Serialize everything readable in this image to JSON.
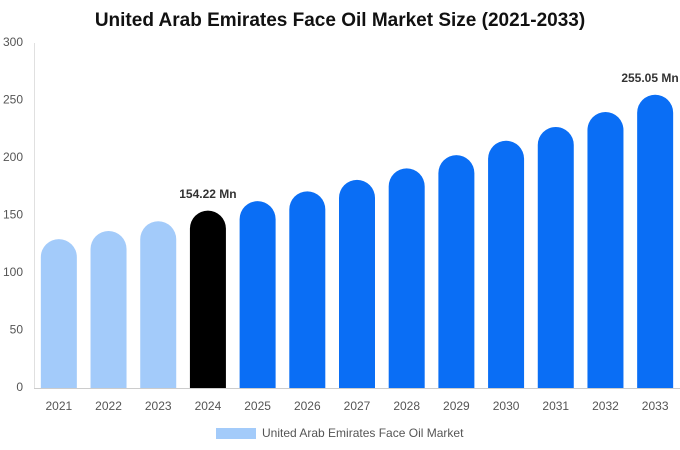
{
  "chart_data": {
    "type": "bar",
    "title": "United Arab Emirates Face Oil Market Size (2021-2033)",
    "categories": [
      "2021",
      "2022",
      "2023",
      "2024",
      "2025",
      "2026",
      "2027",
      "2028",
      "2029",
      "2030",
      "2031",
      "2032",
      "2033"
    ],
    "series": [
      {
        "name": "United Arab Emirates Face Oil Market",
        "color": "#a3cbfa",
        "values": [
          129.5,
          136.5,
          145,
          154.22,
          162.5,
          171,
          181,
          191,
          202.5,
          215,
          227,
          240,
          255.05
        ],
        "value_labels": [
          null,
          null,
          null,
          "154.22 Mn",
          null,
          null,
          null,
          null,
          null,
          null,
          null,
          null,
          "255.05 Mn"
        ],
        "bar_colors": [
          "#a3cbfa",
          "#a3cbfa",
          "#a3cbfa",
          "#000000",
          "#0a6ef5",
          "#0a6ef5",
          "#0a6ef5",
          "#0a6ef5",
          "#0a6ef5",
          "#0a6ef5",
          "#0a6ef5",
          "#0a6ef5",
          "#0a6ef5"
        ]
      }
    ],
    "ylim": [
      0,
      300
    ],
    "yticks": [
      0,
      50,
      100,
      150,
      200,
      250,
      300
    ],
    "grid": false,
    "legend": "bottom"
  }
}
